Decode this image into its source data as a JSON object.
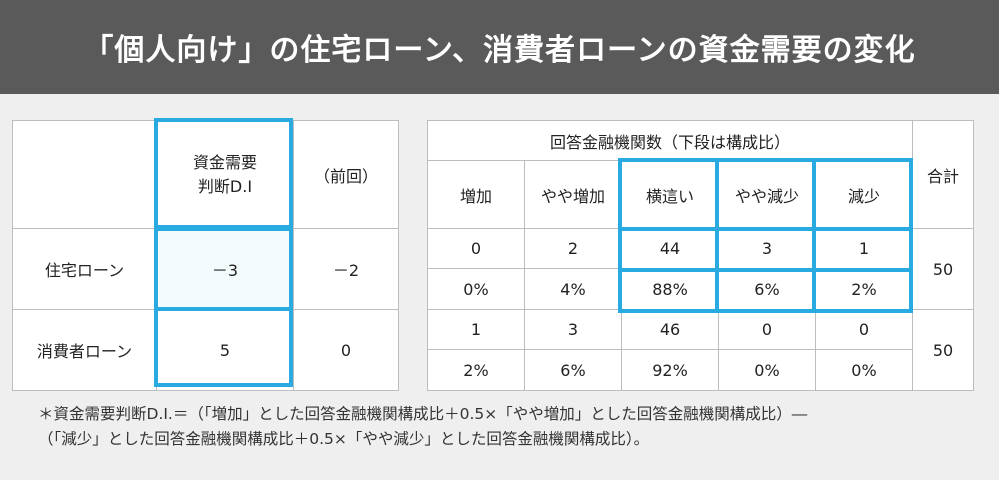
{
  "header": {
    "title": "「個人向け」の住宅ローン、消費者ローンの資金需要の変化"
  },
  "left_table": {
    "col_di": "資金需要\n判断D.I",
    "col_prev": "（前回）",
    "rows": [
      {
        "label": "住宅ローン",
        "di": "－3",
        "prev": "－2"
      },
      {
        "label": "消費者ローン",
        "di": "5",
        "prev": "0"
      }
    ]
  },
  "right_table": {
    "group_header": "回答金融機関数（下段は構成比）",
    "total_header": "合計",
    "columns": [
      "増加",
      "やや増加",
      "横這い",
      "やや減少",
      "減少"
    ],
    "rows": [
      {
        "counts": [
          "0",
          "2",
          "44",
          "3",
          "1"
        ],
        "ratios": [
          "0%",
          "4%",
          "88%",
          "6%",
          "2%"
        ],
        "total": "50"
      },
      {
        "counts": [
          "1",
          "3",
          "46",
          "0",
          "0"
        ],
        "ratios": [
          "2%",
          "6%",
          "92%",
          "0%",
          "0%"
        ],
        "total": "50"
      }
    ]
  },
  "note": {
    "line1": "＊資金需要判断D.I.＝（「増加」とした回答金融機関構成比＋0.5×「やや増加」とした回答金融機関構成比）―",
    "line2": "（「減少」とした回答金融機関構成比＋0.5×「やや減少」とした回答金融機関構成比）。"
  },
  "colors": {
    "header_bg": "#5a5a5a",
    "highlight": "#29abe2"
  }
}
